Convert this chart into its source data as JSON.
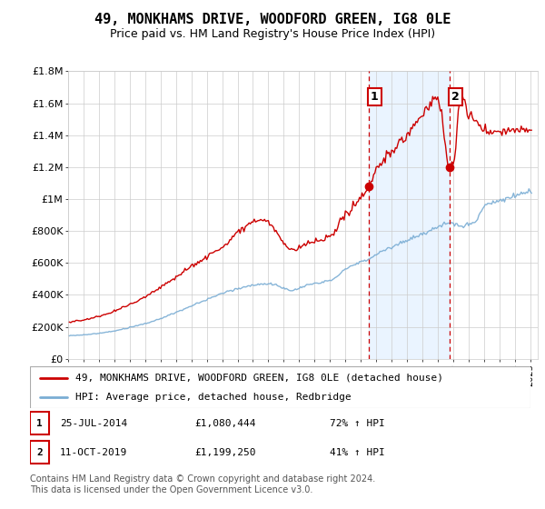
{
  "title": "49, MONKHAMS DRIVE, WOODFORD GREEN, IG8 0LE",
  "subtitle": "Price paid vs. HM Land Registry's House Price Index (HPI)",
  "ylim": [
    0,
    1800000
  ],
  "yticks": [
    0,
    200000,
    400000,
    600000,
    800000,
    1000000,
    1200000,
    1400000,
    1600000,
    1800000
  ],
  "ytick_labels": [
    "£0",
    "£200K",
    "£400K",
    "£600K",
    "£800K",
    "£1M",
    "£1.2M",
    "£1.4M",
    "£1.6M",
    "£1.8M"
  ],
  "sale1_x": 2014.54,
  "sale1_price": 1080444,
  "sale1_label": "25-JUL-2014",
  "sale1_hpi_pct": "72% ↑ HPI",
  "sale2_x": 2019.79,
  "sale2_price": 1199250,
  "sale2_label": "11-OCT-2019",
  "sale2_hpi_pct": "41% ↑ HPI",
  "legend_property": "49, MONKHAMS DRIVE, WOODFORD GREEN, IG8 0LE (detached house)",
  "legend_hpi": "HPI: Average price, detached house, Redbridge",
  "footer": "Contains HM Land Registry data © Crown copyright and database right 2024.\nThis data is licensed under the Open Government Licence v3.0.",
  "property_color": "#cc0000",
  "hpi_color": "#7aadd4",
  "shade_color": "#ddeeff",
  "vline_color": "#cc0000",
  "background_color": "#ffffff",
  "grid_color": "#cccccc",
  "title_fontsize": 11,
  "subtitle_fontsize": 9,
  "tick_fontsize": 8,
  "legend_fontsize": 8,
  "annotation_fontsize": 8,
  "footer_fontsize": 7
}
